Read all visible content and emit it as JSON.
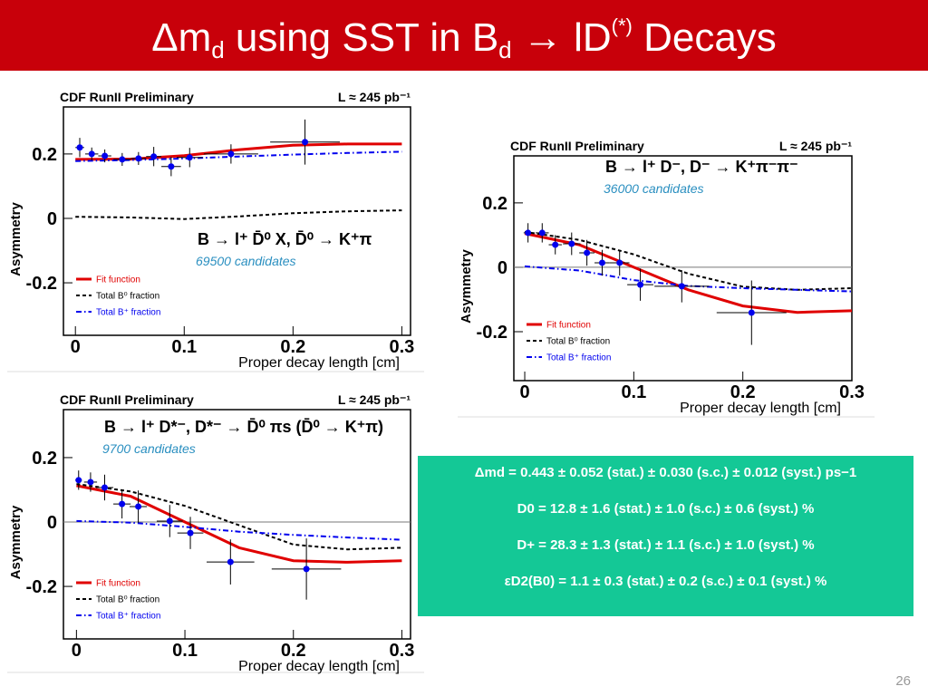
{
  "title_parts": [
    "Δm",
    "d",
    " using SST in B",
    "d",
    " → lD",
    "(*)",
    " Decays"
  ],
  "results": [
    "Δmd = 0.443 ± 0.052 (stat.) ± 0.030 (s.c.) ± 0.012 (syst.) ps−1",
    "D0 = 12.8 ± 1.6 (stat.) ± 1.0 (s.c.) ± 0.6 (syst.) %",
    "D+ = 28.3 ± 1.3 (stat.) ± 1.1 (s.c.) ± 1.0 (syst.) %",
    "εD2(B0) = 1.1 ± 0.3 (stat.) ± 0.2 (s.c.) ± 0.1 (syst.) %"
  ],
  "page_number": "26",
  "chart_data": [
    {
      "type": "scatter",
      "header": "CDF RunII Preliminary",
      "lumi": "L ≈ 245 pb⁻¹",
      "decay": "B → l⁺ D̄⁰ X, D̄⁰ → K⁺π",
      "candidates": "69500 candidates",
      "x_label": "Proper decay length [cm]",
      "y_label": "Asymmetry",
      "xlim": [
        -0.011,
        0.308
      ],
      "ylim": [
        -0.363,
        0.346
      ],
      "xticks": [
        0,
        0.1,
        0.2,
        0.3
      ],
      "yticks": [
        0.2,
        0,
        -0.2
      ],
      "zero_line": false,
      "points": {
        "color": "#0000ee",
        "x": [
          0.004,
          0.015,
          0.027,
          0.043,
          0.058,
          0.072,
          0.088,
          0.105,
          0.143,
          0.211
        ],
        "values": [
          0.22,
          0.2,
          0.194,
          0.183,
          0.186,
          0.192,
          0.161,
          0.189,
          0.2,
          0.237
        ],
        "yerr": [
          0.03,
          0.02,
          0.02,
          0.02,
          0.02,
          0.03,
          0.03,
          0.03,
          0.03,
          0.07
        ],
        "xerr": [
          0.004,
          0.006,
          0.006,
          0.008,
          0.007,
          0.007,
          0.009,
          0.012,
          0.025,
          0.032
        ]
      },
      "series": [
        {
          "name": "Fit function",
          "color": "#e00000",
          "style": "solid",
          "x": [
            0,
            0.05,
            0.1,
            0.15,
            0.2,
            0.25,
            0.3
          ],
          "values": [
            0.183,
            0.184,
            0.195,
            0.213,
            0.227,
            0.231,
            0.231
          ]
        },
        {
          "name": "Total B⁰ fraction",
          "color": "#000000",
          "style": "dashed",
          "x": [
            0,
            0.05,
            0.1,
            0.15,
            0.2,
            0.25,
            0.3
          ],
          "values": [
            0.005,
            0.003,
            -0.002,
            0.006,
            0.016,
            0.022,
            0.025
          ]
        },
        {
          "name": "Total B⁺ fraction",
          "color": "#0000ee",
          "style": "dashdot",
          "x": [
            0,
            0.05,
            0.1,
            0.15,
            0.2,
            0.25,
            0.3
          ],
          "values": [
            0.178,
            0.181,
            0.186,
            0.192,
            0.198,
            0.203,
            0.207
          ]
        }
      ]
    },
    {
      "type": "scatter",
      "header": "CDF RunII Preliminary",
      "lumi": "L ≈ 245 pb⁻¹",
      "decay": "B → l⁺ D⁻, D⁻ → K⁺π⁻π⁻",
      "candidates": "36000 candidates",
      "x_label": "Proper decay length [cm]",
      "y_label": "Asymmetry",
      "xlim": [
        -0.01,
        0.3
      ],
      "ylim": [
        -0.352,
        0.346
      ],
      "xticks": [
        0,
        0.1,
        0.2,
        0.3
      ],
      "yticks": [
        0.2,
        0,
        -0.2
      ],
      "zero_line": true,
      "points": {
        "color": "#0000ee",
        "x": [
          0.003,
          0.016,
          0.028,
          0.043,
          0.057,
          0.071,
          0.087,
          0.106,
          0.144,
          0.208
        ],
        "values": [
          0.107,
          0.107,
          0.07,
          0.073,
          0.045,
          0.014,
          0.014,
          -0.054,
          -0.059,
          -0.141
        ],
        "yerr": [
          0.03,
          0.03,
          0.03,
          0.035,
          0.04,
          0.04,
          0.04,
          0.05,
          0.05,
          0.1
        ],
        "xerr": [
          0.004,
          0.006,
          0.006,
          0.008,
          0.007,
          0.007,
          0.009,
          0.012,
          0.025,
          0.032
        ]
      },
      "series": [
        {
          "name": "Fit function",
          "color": "#e00000",
          "style": "solid",
          "x": [
            0,
            0.05,
            0.1,
            0.15,
            0.2,
            0.25,
            0.3
          ],
          "values": [
            0.105,
            0.07,
            0.0,
            -0.07,
            -0.12,
            -0.14,
            -0.135
          ]
        },
        {
          "name": "Total B⁰ fraction",
          "color": "#000000",
          "style": "dashed",
          "x": [
            0,
            0.05,
            0.1,
            0.15,
            0.2,
            0.25,
            0.3
          ],
          "values": [
            0.11,
            0.085,
            0.04,
            -0.02,
            -0.06,
            -0.07,
            -0.065
          ]
        },
        {
          "name": "Total B⁺ fraction",
          "color": "#0000ee",
          "style": "dashdot",
          "x": [
            0,
            0.05,
            0.1,
            0.15,
            0.2,
            0.25,
            0.3
          ],
          "values": [
            0.003,
            -0.01,
            -0.04,
            -0.058,
            -0.065,
            -0.07,
            -0.075
          ]
        }
      ]
    },
    {
      "type": "scatter",
      "header": "CDF RunII Preliminary",
      "lumi": "L ≈ 245 pb⁻¹",
      "decay": "B → l⁺ D*⁻, D*⁻ → D̄⁰ πs (D̄⁰ → K⁺π)",
      "candidates": "9700 candidates",
      "x_label": "Proper decay length [cm]",
      "y_label": "Asymmetry",
      "xlim": [
        -0.012,
        0.308
      ],
      "ylim": [
        -0.363,
        0.349
      ],
      "xticks": [
        0,
        0.1,
        0.2,
        0.3
      ],
      "yticks": [
        0.2,
        0,
        -0.2
      ],
      "zero_line": true,
      "points": {
        "color": "#0000ee",
        "x": [
          0.002,
          0.013,
          0.026,
          0.042,
          0.057,
          0.086,
          0.105,
          0.142,
          0.212
        ],
        "values": [
          0.13,
          0.124,
          0.107,
          0.056,
          0.048,
          0.003,
          -0.034,
          -0.124,
          -0.146
        ],
        "yerr": [
          0.03,
          0.03,
          0.04,
          0.045,
          0.05,
          0.05,
          0.05,
          0.07,
          0.095
        ],
        "xerr": [
          0.003,
          0.006,
          0.008,
          0.008,
          0.008,
          0.012,
          0.012,
          0.022,
          0.032
        ]
      },
      "series": [
        {
          "name": "Fit function",
          "color": "#e00000",
          "style": "solid",
          "x": [
            0,
            0.05,
            0.1,
            0.15,
            0.2,
            0.25,
            0.3
          ],
          "values": [
            0.113,
            0.08,
            0.0,
            -0.08,
            -0.12,
            -0.125,
            -0.12
          ]
        },
        {
          "name": "Total B⁰ fraction",
          "color": "#000000",
          "style": "dashed",
          "x": [
            0,
            0.05,
            0.1,
            0.15,
            0.2,
            0.25,
            0.3
          ],
          "values": [
            0.118,
            0.095,
            0.05,
            -0.01,
            -0.07,
            -0.085,
            -0.08
          ]
        },
        {
          "name": "Total B⁺ fraction",
          "color": "#0000ee",
          "style": "dashdot",
          "x": [
            0,
            0.05,
            0.1,
            0.15,
            0.2,
            0.25,
            0.3
          ],
          "values": [
            0.003,
            -0.002,
            -0.015,
            -0.03,
            -0.04,
            -0.048,
            -0.055
          ]
        }
      ]
    }
  ]
}
